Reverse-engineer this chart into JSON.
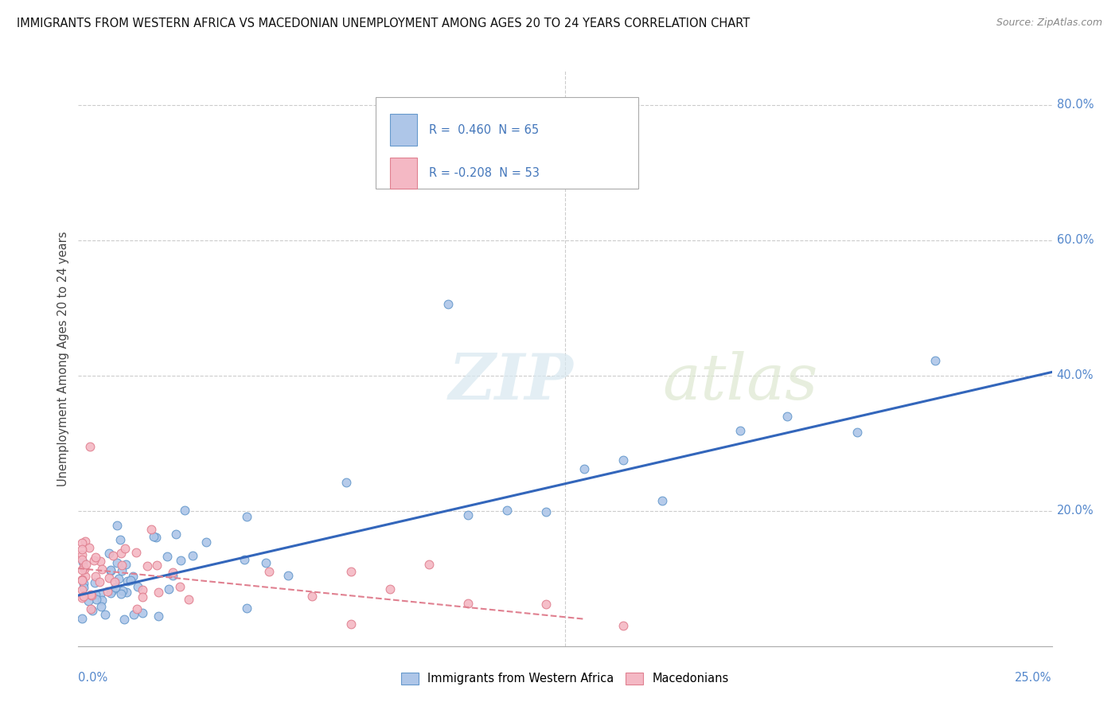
{
  "title": "IMMIGRANTS FROM WESTERN AFRICA VS MACEDONIAN UNEMPLOYMENT AMONG AGES 20 TO 24 YEARS CORRELATION CHART",
  "source": "Source: ZipAtlas.com",
  "xmin": 0.0,
  "xmax": 0.25,
  "ymin": 0.0,
  "ymax": 0.85,
  "blue_R": 0.46,
  "blue_N": 65,
  "pink_R": -0.208,
  "pink_N": 53,
  "blue_color": "#aec6e8",
  "blue_edge": "#6699cc",
  "pink_color": "#f4b8c4",
  "pink_edge": "#e08090",
  "blue_line_color": "#3366bb",
  "pink_line_color": "#e08090",
  "watermark_zip": "ZIP",
  "watermark_atlas": "atlas",
  "legend_label_blue": "Immigrants from Western Africa",
  "legend_label_pink": "Macedonians",
  "blue_trend_x0": 0.0,
  "blue_trend_y0": 0.075,
  "blue_trend_x1": 0.25,
  "blue_trend_y1": 0.405,
  "pink_trend_x0": 0.0,
  "pink_trend_y0": 0.115,
  "pink_trend_x1": 0.13,
  "pink_trend_y1": 0.04
}
